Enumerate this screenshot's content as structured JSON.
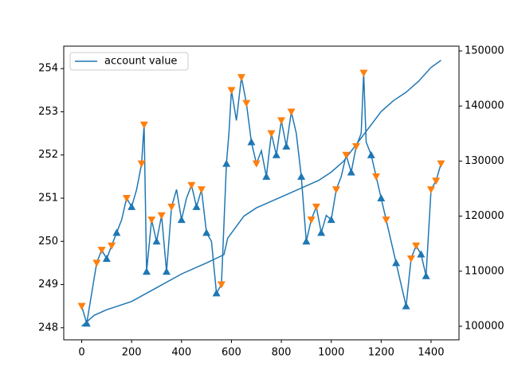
{
  "chart_data": {
    "type": "line",
    "xlim": [
      -72,
      1512
    ],
    "xticks": [
      0,
      200,
      400,
      600,
      800,
      1000,
      1200,
      1400
    ],
    "ylim": [
      247.72,
      254.52
    ],
    "yticks": [
      248,
      249,
      250,
      251,
      252,
      253,
      254
    ],
    "y2lim": [
      97540,
      150870
    ],
    "y2ticks": [
      100000,
      110000,
      120000,
      130000,
      140000,
      150000
    ],
    "legend": "upper left",
    "series": [
      {
        "color": "#1f77b4",
        "axis": "y",
        "marker": "none",
        "x": [
          0,
          20,
          40,
          60,
          80,
          100,
          120,
          140,
          160,
          180,
          200,
          220,
          240,
          250,
          260,
          280,
          300,
          320,
          340,
          360,
          380,
          400,
          420,
          440,
          460,
          480,
          500,
          520,
          540,
          560,
          580,
          590,
          600,
          620,
          640,
          660,
          680,
          700,
          720,
          740,
          760,
          780,
          800,
          820,
          840,
          860,
          880,
          900,
          920,
          940,
          960,
          980,
          1000,
          1020,
          1040,
          1060,
          1080,
          1100,
          1120,
          1130,
          1140,
          1160,
          1180,
          1200,
          1220,
          1240,
          1260,
          1280,
          1300,
          1320,
          1340,
          1360,
          1380,
          1400,
          1420,
          1440
        ],
        "values": [
          248.5,
          248.1,
          248.8,
          249.5,
          249.8,
          249.6,
          249.9,
          250.2,
          250.5,
          251.0,
          250.8,
          251.2,
          251.8,
          252.7,
          249.3,
          250.5,
          250.0,
          250.6,
          249.3,
          250.8,
          251.2,
          250.5,
          251.0,
          251.3,
          250.8,
          251.2,
          250.2,
          250.0,
          248.8,
          249.0,
          251.8,
          252.5,
          253.5,
          252.8,
          253.8,
          253.2,
          252.3,
          251.8,
          252.1,
          251.5,
          252.5,
          252.0,
          252.8,
          252.2,
          253.0,
          252.5,
          251.5,
          250.0,
          250.5,
          250.8,
          250.2,
          250.6,
          250.5,
          251.2,
          251.5,
          252.0,
          251.6,
          252.2,
          252.5,
          253.9,
          252.3,
          252.0,
          251.5,
          251.0,
          250.5,
          250.0,
          249.5,
          249.0,
          248.5,
          249.6,
          249.9,
          249.7,
          249.2,
          251.2,
          251.4,
          251.8
        ]
      },
      {
        "name": "account value",
        "color": "#1f77b4",
        "axis": "y2",
        "marker": "none",
        "x": [
          0,
          20,
          50,
          100,
          200,
          300,
          400,
          500,
          570,
          585,
          650,
          700,
          800,
          900,
          950,
          1000,
          1050,
          1100,
          1150,
          1200,
          1250,
          1300,
          1350,
          1400,
          1440
        ],
        "values": [
          100000,
          100800,
          102000,
          103000,
          104500,
          107000,
          109500,
          111500,
          113000,
          116000,
          120000,
          121500,
          123500,
          125500,
          126500,
          128000,
          130000,
          133000,
          136000,
          139000,
          141000,
          142500,
          144500,
          147000,
          148300
        ]
      },
      {
        "color": "#1f77b4",
        "axis": "y",
        "marker": "^",
        "x": [
          20,
          100,
          140,
          200,
          260,
          300,
          340,
          400,
          460,
          500,
          540,
          580,
          680,
          740,
          780,
          820,
          880,
          900,
          960,
          1000,
          1080,
          1160,
          1200,
          1260,
          1300,
          1360,
          1380
        ],
        "values": [
          248.1,
          249.6,
          250.2,
          250.8,
          249.3,
          250.0,
          249.3,
          250.5,
          250.8,
          250.2,
          248.8,
          251.8,
          252.3,
          251.5,
          252.0,
          252.2,
          251.5,
          250.0,
          250.2,
          250.5,
          251.6,
          252.0,
          251.0,
          249.5,
          248.5,
          249.7,
          249.2
        ]
      },
      {
        "color": "#ff7f0e",
        "axis": "y",
        "marker": "v",
        "x": [
          0,
          60,
          80,
          120,
          180,
          240,
          250,
          280,
          320,
          360,
          440,
          480,
          560,
          600,
          640,
          660,
          700,
          760,
          800,
          840,
          920,
          940,
          1020,
          1060,
          1100,
          1130,
          1180,
          1220,
          1320,
          1340,
          1400,
          1420,
          1440
        ],
        "values": [
          248.5,
          249.5,
          249.8,
          249.9,
          251.0,
          251.8,
          252.7,
          250.5,
          250.6,
          250.8,
          251.3,
          251.2,
          249.0,
          253.5,
          253.8,
          253.2,
          251.8,
          252.5,
          252.8,
          253.0,
          250.5,
          250.8,
          251.2,
          252.0,
          252.2,
          253.9,
          251.5,
          250.5,
          249.6,
          249.9,
          251.2,
          251.4,
          251.8
        ]
      }
    ]
  }
}
